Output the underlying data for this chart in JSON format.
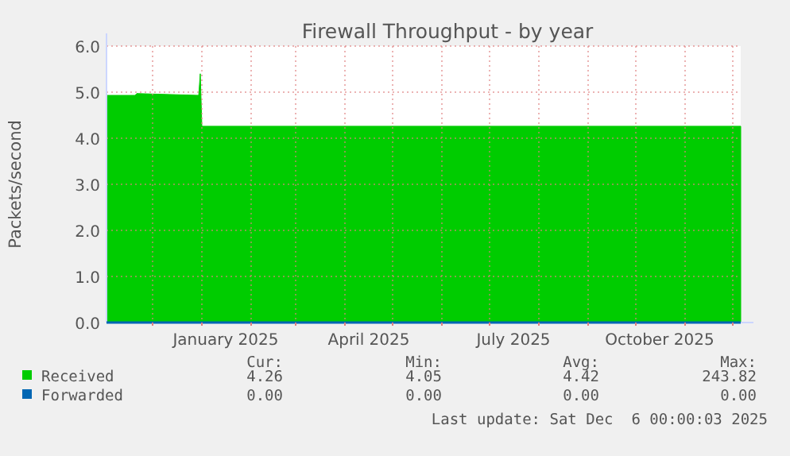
{
  "chart_data": {
    "type": "area",
    "title": "Firewall Throughput - by year",
    "ylabel": "Packets/second",
    "xlim": [
      "2024-11-02",
      "2025-12-06"
    ],
    "xticks": [
      {
        "value": "2024-12-01",
        "label": null
      },
      {
        "value": "2025-01-01",
        "label": null
      },
      {
        "value": "2025-01-16",
        "label": "January 2025"
      },
      {
        "value": "2025-02-01",
        "label": null
      },
      {
        "value": "2025-03-01",
        "label": null
      },
      {
        "value": "2025-04-01",
        "label": null
      },
      {
        "value": "2025-04-16",
        "label": "April 2025"
      },
      {
        "value": "2025-05-01",
        "label": null
      },
      {
        "value": "2025-06-01",
        "label": null
      },
      {
        "value": "2025-07-01",
        "label": null
      },
      {
        "value": "2025-07-16",
        "label": "July 2025"
      },
      {
        "value": "2025-08-01",
        "label": null
      },
      {
        "value": "2025-09-01",
        "label": null
      },
      {
        "value": "2025-10-01",
        "label": null
      },
      {
        "value": "2025-10-16",
        "label": "October 2025"
      },
      {
        "value": "2025-11-01",
        "label": null
      },
      {
        "value": "2025-12-01",
        "label": null
      }
    ],
    "ylim": [
      0,
      6
    ],
    "yticks": [
      {
        "value": 0,
        "label": "0.0"
      },
      {
        "value": 1,
        "label": "1.0"
      },
      {
        "value": 2,
        "label": "2.0"
      },
      {
        "value": 3,
        "label": "3.0"
      },
      {
        "value": 4,
        "label": "4.0"
      },
      {
        "value": 5,
        "label": "5.0"
      },
      {
        "value": 6,
        "label": "6.0"
      }
    ],
    "grid": true,
    "legend": "bottom left",
    "series": [
      {
        "name": "Received",
        "color": "#00cc00",
        "x": [
          "2024-11-02",
          "2024-11-20",
          "2024-11-21",
          "2024-12-30",
          "2024-12-31",
          "2025-01-01",
          "2025-12-06"
        ],
        "values": [
          4.93,
          4.93,
          4.97,
          4.93,
          5.4,
          4.26,
          4.26
        ]
      },
      {
        "name": "Forwarded",
        "type": "line",
        "color": "#0066b3",
        "x": [
          "2024-11-02",
          "2025-12-06"
        ],
        "values": [
          0,
          0
        ]
      }
    ],
    "annotations": [
      "Cur:",
      "Min:",
      "Avg:",
      "Max:",
      "4.26",
      "4.05",
      "4.42",
      "243.82",
      "0.00",
      "0.00",
      "0.00",
      "0.00",
      "Last update: Sat Dec  6 00:00:03 2025"
    ]
  }
}
